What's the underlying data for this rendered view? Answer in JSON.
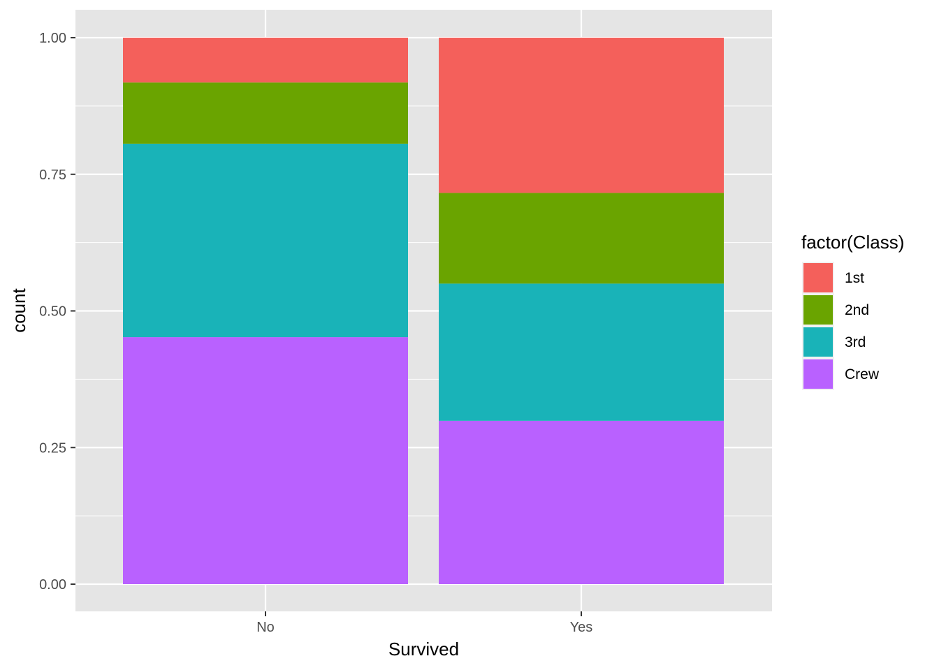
{
  "chart_data": {
    "type": "bar",
    "stacked": true,
    "position": "fill",
    "categories": [
      "No",
      "Yes"
    ],
    "series": [
      {
        "name": "Crew",
        "values": [
          0.452,
          0.299
        ],
        "color": "#B961FF"
      },
      {
        "name": "3rd",
        "values": [
          0.354,
          0.251
        ],
        "color": "#19B3B8"
      },
      {
        "name": "2nd",
        "values": [
          0.112,
          0.166
        ],
        "color": "#6AA400"
      },
      {
        "name": "1st",
        "values": [
          0.082,
          0.284
        ],
        "color": "#F4605B"
      }
    ],
    "xlabel": "Survived",
    "ylabel": "count",
    "ylim": [
      0,
      1
    ],
    "yticks": [
      "0.00",
      "0.25",
      "0.50",
      "0.75",
      "1.00"
    ],
    "legend_title": "factor(Class)",
    "legend_order": [
      "1st",
      "2nd",
      "3rd",
      "Crew"
    ],
    "legend_position": "right",
    "grid": true,
    "panel_background": "#E5E5E5"
  }
}
